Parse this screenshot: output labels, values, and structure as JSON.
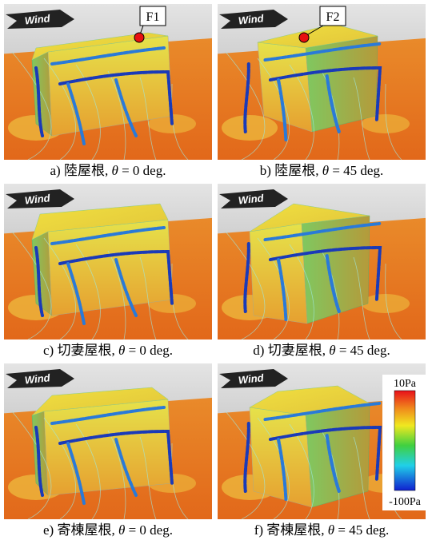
{
  "panels": [
    {
      "caption": {
        "prefix": "a)  陸屋根, ",
        "symbol": "θ",
        "suffix": " = 0 deg."
      },
      "wind": "Wind",
      "marker": "F1"
    },
    {
      "caption": {
        "prefix": "b)  陸屋根, ",
        "symbol": "θ",
        "suffix": " = 45 deg."
      },
      "wind": "Wind",
      "marker": "F2"
    },
    {
      "caption": {
        "prefix": "c)  切妻屋根, ",
        "symbol": "θ",
        "suffix": " = 0 deg."
      },
      "wind": "Wind"
    },
    {
      "caption": {
        "prefix": "d)  切妻屋根, ",
        "symbol": "θ",
        "suffix": " = 45 deg."
      },
      "wind": "Wind"
    },
    {
      "caption": {
        "prefix": "e)  寄棟屋根, ",
        "symbol": "θ",
        "suffix": " = 0 deg."
      },
      "wind": "Wind"
    },
    {
      "caption": {
        "prefix": "f)  寄棟屋根, ",
        "symbol": "θ",
        "suffix": " = 45 deg."
      },
      "wind": "Wind"
    }
  ],
  "colorbar": {
    "max": "10Pa",
    "min": "-100Pa"
  }
}
